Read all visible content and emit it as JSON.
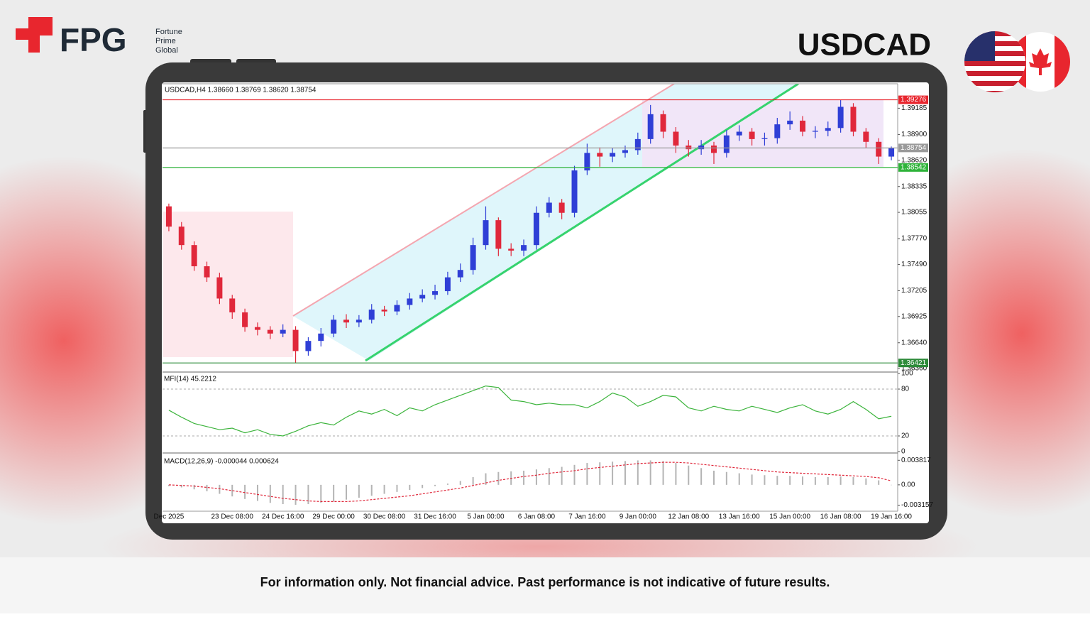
{
  "header": {
    "logo": "FPG",
    "brand": [
      "Fortune",
      "Prime",
      "Global"
    ],
    "symbol": "USDCAD"
  },
  "disclaimer": "For information only. Not financial advice. Past performance is not indicative of future results.",
  "chart_data": [
    {
      "type": "candlestick",
      "title": "USDCAD,H4  1.38660 1.38769 1.38620 1.38754",
      "categories": [
        "Dec 2025",
        null,
        null,
        null,
        null,
        "23 Dec 08:00",
        null,
        null,
        null,
        "24 Dec 16:00",
        null,
        null,
        null,
        "29 Dec 00:00",
        null,
        null,
        null,
        "30 Dec 08:00",
        null,
        null,
        null,
        "31 Dec 16:00",
        null,
        null,
        null,
        "5 Jan 00:00",
        null,
        null,
        null,
        "6 Jan 08:00",
        null,
        null,
        null,
        "7 Jan 16:00",
        null,
        null,
        null,
        "9 Jan 00:00",
        null,
        null,
        null,
        "12 Jan 08:00",
        null,
        null,
        null,
        "13 Jan 16:00",
        null,
        null,
        null,
        "15 Jan 00:00",
        null,
        null,
        null,
        "16 Jan 08:00",
        null,
        null,
        null,
        "19 Jan 16:00"
      ],
      "open": [
        1.3812,
        1.379,
        1.377,
        1.3747,
        1.3735,
        1.3712,
        1.3697,
        1.3681,
        1.3678,
        1.3674,
        1.3678,
        1.3655,
        1.3666,
        1.3674,
        1.3689,
        1.3686,
        1.3689,
        1.37,
        1.3698,
        1.3705,
        1.3712,
        1.3716,
        1.372,
        1.3735,
        1.3743,
        1.377,
        1.3797,
        1.3766,
        1.3764,
        1.377,
        1.3805,
        1.3816,
        1.3805,
        1.3851,
        1.387,
        1.3866,
        1.387,
        1.3873,
        1.3885,
        1.3912,
        1.3893,
        1.3878,
        1.3874,
        1.3878,
        1.387,
        1.3889,
        1.3893,
        1.3885,
        1.3886,
        1.3901,
        1.3905,
        1.3893,
        1.3894,
        1.3897,
        1.392,
        1.3893,
        1.3882,
        1.3866
      ],
      "high": [
        1.3815,
        1.3795,
        1.3774,
        1.3752,
        1.374,
        1.3716,
        1.3701,
        1.3686,
        1.3682,
        1.3684,
        1.3682,
        1.367,
        1.368,
        1.3694,
        1.3695,
        1.3694,
        1.3706,
        1.3704,
        1.371,
        1.3718,
        1.3722,
        1.3727,
        1.3741,
        1.375,
        1.3778,
        1.3812,
        1.38,
        1.3772,
        1.3776,
        1.3812,
        1.3822,
        1.382,
        1.3856,
        1.388,
        1.3876,
        1.3875,
        1.3878,
        1.3892,
        1.3922,
        1.3916,
        1.3898,
        1.3884,
        1.3884,
        1.3882,
        1.3895,
        1.39,
        1.3897,
        1.3892,
        1.3908,
        1.3915,
        1.391,
        1.3899,
        1.3904,
        1.3928,
        1.3924,
        1.3897,
        1.3886,
        1.38769
      ],
      "low": [
        1.3785,
        1.3765,
        1.3742,
        1.373,
        1.3706,
        1.369,
        1.3676,
        1.3672,
        1.3668,
        1.367,
        1.3642,
        1.365,
        1.366,
        1.367,
        1.368,
        1.3681,
        1.3685,
        1.3693,
        1.3694,
        1.37,
        1.3708,
        1.3711,
        1.3716,
        1.373,
        1.3738,
        1.3765,
        1.3758,
        1.3758,
        1.3758,
        1.3765,
        1.38,
        1.3798,
        1.38,
        1.3846,
        1.3855,
        1.386,
        1.3865,
        1.3868,
        1.388,
        1.3886,
        1.387,
        1.3866,
        1.3868,
        1.3858,
        1.3865,
        1.3883,
        1.3878,
        1.3878,
        1.388,
        1.3895,
        1.3888,
        1.3886,
        1.3888,
        1.3892,
        1.3888,
        1.3875,
        1.3858,
        1.3862
      ],
      "close": [
        1.379,
        1.377,
        1.3747,
        1.3735,
        1.3712,
        1.3697,
        1.3681,
        1.3678,
        1.3674,
        1.3678,
        1.3655,
        1.3666,
        1.3674,
        1.3689,
        1.3686,
        1.3689,
        1.37,
        1.3698,
        1.3705,
        1.3712,
        1.3716,
        1.372,
        1.3735,
        1.3743,
        1.377,
        1.3797,
        1.3766,
        1.3764,
        1.377,
        1.3805,
        1.3816,
        1.3805,
        1.3851,
        1.387,
        1.3866,
        1.387,
        1.3873,
        1.3885,
        1.3912,
        1.3893,
        1.3878,
        1.3874,
        1.3878,
        1.387,
        1.3889,
        1.3893,
        1.3885,
        1.3886,
        1.3901,
        1.3905,
        1.3893,
        1.3894,
        1.3897,
        1.392,
        1.3893,
        1.3882,
        1.3866,
        1.38754
      ],
      "up_color": "#2f3fd6",
      "down_color": "#e0283b",
      "ylim": [
        1.3633,
        1.3945
      ],
      "yticks": [
        1.39185,
        {
          "value": 1.389,
          "label": "1.38900"
        },
        {
          "value": 1.3862,
          "label": "1.38620"
        },
        1.38335,
        1.38055,
        {
          "value": 1.3777,
          "label": "1.37770"
        },
        {
          "value": 1.3749,
          "label": "1.37490"
        },
        1.37205,
        1.36925,
        {
          "value": 1.3664,
          "label": "1.36640"
        },
        {
          "value": 1.3636,
          "label": "1.36360"
        }
      ],
      "levels": [
        {
          "value": 1.39276,
          "color": "#e8262e"
        },
        {
          "value": 1.38754,
          "color": "#9a9a9a"
        },
        {
          "value": 1.38542,
          "color": "#2fb33a"
        },
        {
          "value": 1.36421,
          "color": "#2e8b3a"
        }
      ]
    },
    {
      "type": "line",
      "title": "MFI(14) 45.2212",
      "color": "#3cb43c",
      "values": [
        53,
        44,
        36,
        32,
        28,
        30,
        24,
        28,
        22,
        20,
        26,
        33,
        37,
        34,
        44,
        52,
        48,
        54,
        46,
        56,
        52,
        60,
        66,
        72,
        78,
        84,
        82,
        66,
        64,
        60,
        62,
        60,
        60,
        56,
        64,
        75,
        70,
        58,
        64,
        72,
        70,
        56,
        52,
        58,
        54,
        52,
        58,
        54,
        50,
        56,
        60,
        52,
        48,
        54,
        64,
        54,
        42,
        45.2212
      ],
      "ylim": [
        0,
        100
      ],
      "yticks": [
        0,
        20,
        80,
        100
      ]
    },
    {
      "type": "macd",
      "title": "MACD(12,26,9) -0.000044 0.000624",
      "histogram": {
        "color": "#b4b4b4",
        "values": [
          -0.0002,
          -0.0004,
          -0.0007,
          -0.001,
          -0.0014,
          -0.0018,
          -0.0022,
          -0.0025,
          -0.0028,
          -0.003,
          -0.0031,
          -0.003,
          -0.0028,
          -0.0026,
          -0.0023,
          -0.002,
          -0.0017,
          -0.0014,
          -0.0011,
          -0.0008,
          -0.0005,
          -0.0002,
          0.0002,
          0.0006,
          0.0012,
          0.0018,
          0.002,
          0.0021,
          0.0022,
          0.0024,
          0.0026,
          0.0028,
          0.0031,
          0.0034,
          0.0035,
          0.0036,
          0.0037,
          0.0038,
          0.0038,
          0.0037,
          0.0034,
          0.003,
          0.0026,
          0.0022,
          0.002,
          0.0018,
          0.0016,
          0.0015,
          0.0014,
          0.0014,
          0.0013,
          0.0012,
          0.0012,
          0.0013,
          0.0012,
          0.001,
          0.0007,
          -4.4e-05
        ]
      },
      "signal": {
        "color": "#e0283b",
        "values": [
          0.0,
          -0.0001,
          -0.0002,
          -0.0004,
          -0.0006,
          -0.0009,
          -0.0012,
          -0.0015,
          -0.0018,
          -0.0021,
          -0.0023,
          -0.0025,
          -0.0026,
          -0.0026,
          -0.0026,
          -0.0025,
          -0.0023,
          -0.0021,
          -0.0019,
          -0.0017,
          -0.0014,
          -0.0011,
          -0.0008,
          -0.0005,
          -0.0001,
          0.0003,
          0.0007,
          0.001,
          0.0013,
          0.0015,
          0.0018,
          0.002,
          0.0022,
          0.0025,
          0.0027,
          0.0029,
          0.0031,
          0.0033,
          0.0034,
          0.0035,
          0.0035,
          0.0034,
          0.0032,
          0.003,
          0.0028,
          0.0026,
          0.0024,
          0.0022,
          0.002,
          0.0019,
          0.0018,
          0.0017,
          0.0016,
          0.0015,
          0.0014,
          0.0013,
          0.0011,
          0.000624
        ]
      },
      "ylim": [
        -0.0041,
        0.0044
      ],
      "yticks": [
        0.003817,
        {
          "value": 0,
          "label": "0.00"
        },
        -0.003157
      ]
    }
  ]
}
